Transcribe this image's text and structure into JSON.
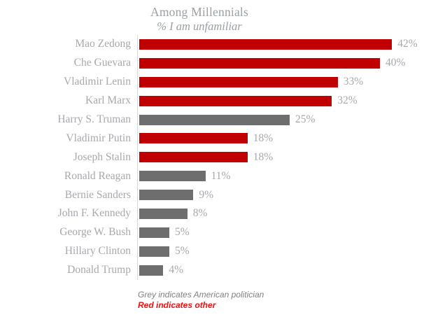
{
  "header": {
    "title": "Among Millennials",
    "subtitle": "% I am unfamiliar"
  },
  "footer": {
    "grey_note": "Grey indicates American politician",
    "red_note": "Red indicates other"
  },
  "colors": {
    "red_bar": "#c00000",
    "grey_bar": "#6e6e6e",
    "label_text": "#a5a9ad",
    "axis_line": "#d9d9d9",
    "footer_grey": "#808080",
    "footer_red": "#f01010"
  },
  "chart_data": {
    "type": "bar",
    "orientation": "horizontal",
    "title": "Among Millennials",
    "subtitle": "% I am unfamiliar",
    "xlabel": "",
    "ylabel": "",
    "xlim": [
      0,
      42
    ],
    "grid": false,
    "legend": "none",
    "categories": [
      "Mao Zedong",
      "Che Guevara",
      "Vladimir Lenin",
      "Karl Marx",
      "Harry S. Truman",
      "Vladimir Putin",
      "Joseph Stalin",
      "Ronald Reagan",
      "Bernie Sanders",
      "John F. Kennedy",
      "George W. Bush",
      "Hillary Clinton",
      "Donald Trump"
    ],
    "values": [
      42,
      40,
      33,
      32,
      25,
      18,
      18,
      11,
      9,
      8,
      5,
      5,
      4
    ],
    "value_labels": [
      "42%",
      "40%",
      "33%",
      "32%",
      "25%",
      "18%",
      "18%",
      "11%",
      "9%",
      "8%",
      "5%",
      "5%",
      "4%"
    ],
    "bar_colors": [
      "red",
      "red",
      "red",
      "red",
      "grey",
      "red",
      "red",
      "grey",
      "grey",
      "grey",
      "grey",
      "grey",
      "grey"
    ],
    "color_meaning": {
      "grey": "American politician",
      "red": "Other (non-American) politician"
    }
  }
}
